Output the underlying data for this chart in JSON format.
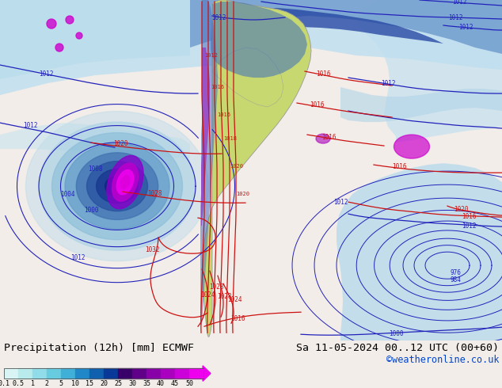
{
  "title_left": "Precipitation (12h) [mm] ECMWF",
  "title_right": "Sa 11-05-2024 00..12 UTC (00+60)",
  "credit": "©weatheronline.co.uk",
  "colorbar_labels": [
    "0.1",
    "0.5",
    "1",
    "2",
    "5",
    "10",
    "15",
    "20",
    "25",
    "30",
    "35",
    "40",
    "45",
    "50"
  ],
  "colorbar_colors": [
    "#d8f4f4",
    "#b8ecec",
    "#90dce8",
    "#68cce0",
    "#40b0d8",
    "#2088c8",
    "#1060b0",
    "#083898",
    "#380068",
    "#600088",
    "#8800a8",
    "#aa00c0",
    "#cc00d8",
    "#ee00ee"
  ],
  "fig_width": 6.34,
  "fig_height": 4.9,
  "dpi": 100,
  "bg_color": "#f2ede8",
  "ocean_light": "#e8f4f8",
  "ocean_medium": "#c8e4f0",
  "ocean_blue": "#a0cce4",
  "ocean_dark": "#6090c8",
  "prec_light": "#d0ecf4",
  "prec_med": "#90c8e0",
  "prec_dark": "#3070b8",
  "prec_vdark": "#082888",
  "land_color": "#c8d870",
  "land_edge": "#999999",
  "blue_isobar": "#2222bb",
  "red_isobar": "#cc1111"
}
